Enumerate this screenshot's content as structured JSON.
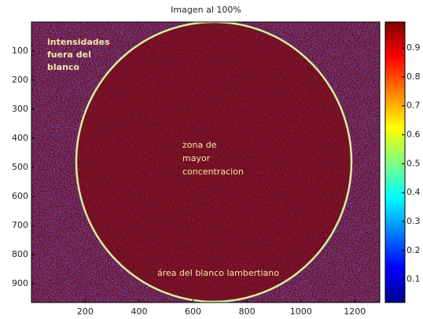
{
  "chart_data": {
    "type": "image",
    "title": "Imagen al 100%",
    "xlim": [
      0.5,
      1292.5
    ],
    "xticks": [
      200,
      400,
      600,
      800,
      1000,
      1200
    ],
    "ylim": [
      964.5,
      0.5
    ],
    "yticks": [
      100,
      200,
      300,
      400,
      500,
      600,
      700,
      800,
      900
    ],
    "colormap": "jet",
    "clim": [
      0.02,
      0.99
    ],
    "cticks": [
      0.1,
      0.2,
      0.3,
      0.4,
      0.5,
      0.6,
      0.7,
      0.8,
      0.9
    ],
    "annotations": [
      [
        "intensidades",
        "fuera del",
        "blanco"
      ],
      [
        "zona de",
        "mayor",
        "concentracion"
      ],
      [
        "área del blanco lambertiano"
      ]
    ]
  }
}
